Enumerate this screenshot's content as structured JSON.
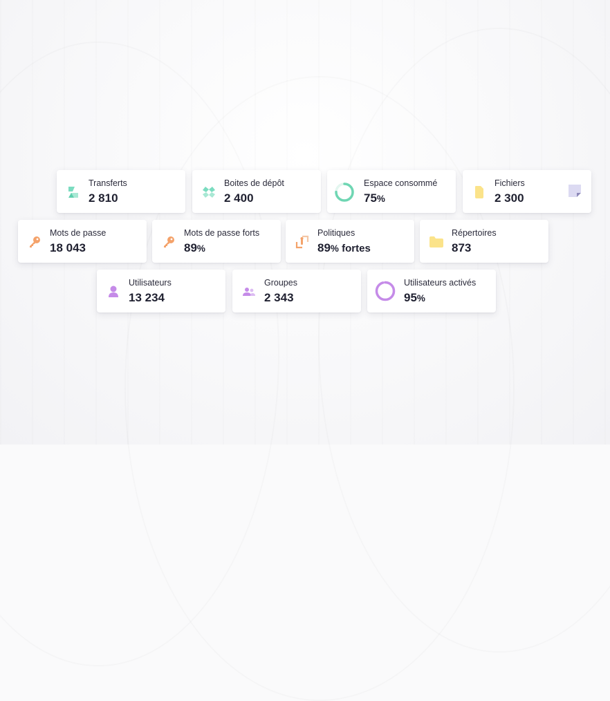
{
  "cards": {
    "transferts": {
      "label": "Transferts",
      "value": "2 810"
    },
    "boites": {
      "label": "Boites de dépôt",
      "value": "2 400"
    },
    "espace": {
      "label": "Espace consommé",
      "value": "75",
      "unit": "%",
      "percent": 75,
      "color": "#6fd6b3"
    },
    "fichiers": {
      "label": "Fichiers",
      "value": "2 300"
    },
    "mots_passe": {
      "label": "Mots de passe",
      "value": "18 043"
    },
    "mots_passe_forts": {
      "label": "Mots de passe forts",
      "value": "89",
      "unit": "%"
    },
    "politiques": {
      "label": "Politiques",
      "value": "89",
      "unit": "%",
      "suffix": " fortes"
    },
    "repertoires": {
      "label": "Répertoires",
      "value": "873"
    },
    "utilisateurs": {
      "label": "Utilisateurs",
      "value": "13 234"
    },
    "groupes": {
      "label": "Groupes",
      "value": "2 343"
    },
    "utilisateurs_actives": {
      "label": "Utilisateurs activés",
      "value": "95",
      "unit": "%",
      "percent": 95,
      "color": "#c58be8"
    }
  },
  "colors": {
    "teal": "#7bdcc0",
    "orange": "#f4a26a",
    "yellow": "#fbe38a",
    "purple": "#c58be8",
    "lavender": "#d9d6f0"
  }
}
